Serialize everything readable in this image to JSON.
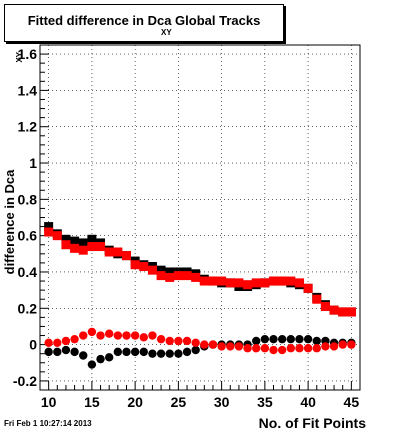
{
  "title": {
    "main": "Fitted difference in Dca  Global Tracks",
    "subscript": "XY"
  },
  "footer": {
    "timestamp": "Fri Feb  1 10:27:14 2013"
  },
  "chart_data": {
    "type": "scatter",
    "xlabel": "No. of Fit Points",
    "ylabel": "difference in Dca",
    "ylabel_sub": "XY",
    "xlim": [
      9,
      46
    ],
    "ylim": [
      -0.25,
      1.65
    ],
    "x_ticks": [
      10,
      15,
      20,
      25,
      30,
      35,
      40,
      45
    ],
    "y_ticks": [
      -0.2,
      0,
      0.2,
      0.4,
      0.6,
      0.8,
      1,
      1.2,
      1.4,
      1.6
    ],
    "y_tick_labels": [
      "-0.2",
      "0",
      "0.2",
      "0.4",
      "0.6",
      "0.8",
      "1",
      "1.2",
      "1.4",
      "1.6"
    ],
    "grid": true,
    "x": [
      10,
      11,
      12,
      13,
      14,
      15,
      16,
      17,
      18,
      19,
      20,
      21,
      22,
      23,
      24,
      25,
      26,
      27,
      28,
      29,
      30,
      31,
      32,
      33,
      34,
      35,
      36,
      37,
      38,
      39,
      40,
      41,
      42,
      43,
      44,
      45
    ],
    "series": [
      {
        "marker": "square",
        "color": "#000000",
        "values": [
          0.65,
          0.61,
          0.58,
          0.57,
          0.56,
          0.58,
          0.56,
          0.52,
          0.5,
          0.49,
          0.46,
          0.44,
          0.43,
          0.41,
          0.4,
          0.4,
          0.4,
          0.39,
          0.36,
          0.35,
          0.34,
          0.34,
          0.32,
          0.32,
          0.33,
          0.34,
          0.35,
          0.35,
          0.34,
          0.33,
          0.31,
          0.26,
          0.22,
          0.19,
          0.18,
          0.18
        ]
      },
      {
        "marker": "square",
        "color": "#ff0000",
        "values": [
          0.62,
          0.6,
          0.55,
          0.53,
          0.52,
          0.54,
          0.54,
          0.51,
          0.51,
          0.49,
          0.44,
          0.43,
          0.41,
          0.38,
          0.37,
          0.38,
          0.38,
          0.37,
          0.35,
          0.35,
          0.35,
          0.34,
          0.34,
          0.33,
          0.34,
          0.34,
          0.35,
          0.35,
          0.35,
          0.34,
          0.31,
          0.25,
          0.21,
          0.19,
          0.18,
          0.18
        ]
      },
      {
        "marker": "circle",
        "color": "#000000",
        "values": [
          -0.04,
          -0.04,
          -0.03,
          -0.04,
          -0.06,
          -0.11,
          -0.08,
          -0.07,
          -0.04,
          -0.04,
          -0.04,
          -0.04,
          -0.05,
          -0.05,
          -0.05,
          -0.05,
          -0.04,
          -0.03,
          -0.01,
          0.0,
          0.0,
          0.0,
          0.0,
          0.0,
          0.02,
          0.03,
          0.03,
          0.03,
          0.03,
          0.03,
          0.03,
          0.02,
          0.02,
          0.01,
          0.01,
          0.01
        ]
      },
      {
        "marker": "circle",
        "color": "#ff0000",
        "values": [
          0.01,
          0.01,
          0.02,
          0.03,
          0.05,
          0.07,
          0.05,
          0.06,
          0.05,
          0.05,
          0.05,
          0.04,
          0.05,
          0.03,
          0.02,
          0.02,
          0.02,
          0.01,
          0.0,
          0.0,
          -0.01,
          -0.01,
          -0.01,
          -0.02,
          -0.02,
          -0.02,
          -0.03,
          -0.03,
          -0.02,
          -0.02,
          -0.02,
          -0.02,
          -0.01,
          -0.01,
          0.0,
          0.0
        ]
      }
    ]
  }
}
